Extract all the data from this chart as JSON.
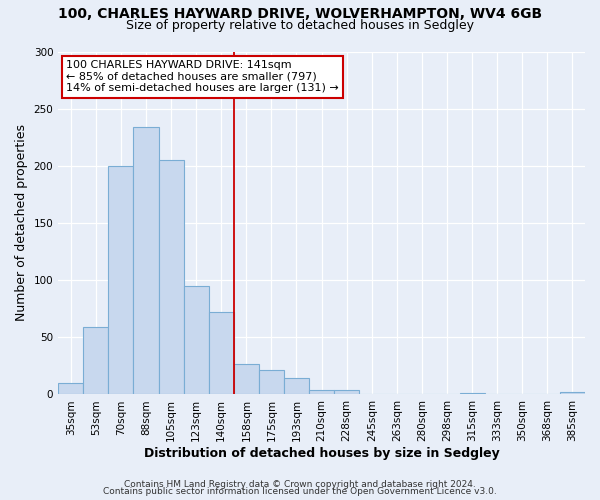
{
  "title": "100, CHARLES HAYWARD DRIVE, WOLVERHAMPTON, WV4 6GB",
  "subtitle": "Size of property relative to detached houses in Sedgley",
  "xlabel": "Distribution of detached houses by size in Sedgley",
  "ylabel": "Number of detached properties",
  "bar_labels": [
    "35sqm",
    "53sqm",
    "70sqm",
    "88sqm",
    "105sqm",
    "123sqm",
    "140sqm",
    "158sqm",
    "175sqm",
    "193sqm",
    "210sqm",
    "228sqm",
    "245sqm",
    "263sqm",
    "280sqm",
    "298sqm",
    "315sqm",
    "333sqm",
    "350sqm",
    "368sqm",
    "385sqm"
  ],
  "bar_values": [
    10,
    59,
    200,
    234,
    205,
    95,
    72,
    27,
    21,
    14,
    4,
    4,
    0,
    0,
    0,
    0,
    1,
    0,
    0,
    0,
    2
  ],
  "bar_color": "#c8d8ee",
  "bar_edge_color": "#7aadd4",
  "vline_color": "#cc0000",
  "annotation_line1": "100 CHARLES HAYWARD DRIVE: 141sqm",
  "annotation_line2": "← 85% of detached houses are smaller (797)",
  "annotation_line3": "14% of semi-detached houses are larger (131) →",
  "annotation_box_color": "white",
  "annotation_box_edge_color": "#cc0000",
  "ylim": [
    0,
    300
  ],
  "yticks": [
    0,
    50,
    100,
    150,
    200,
    250,
    300
  ],
  "footer1": "Contains HM Land Registry data © Crown copyright and database right 2024.",
  "footer2": "Contains public sector information licensed under the Open Government Licence v3.0.",
  "bg_color": "#e8eef8",
  "plot_bg_color": "#e8eef8",
  "title_fontsize": 10,
  "subtitle_fontsize": 9,
  "axis_label_fontsize": 9,
  "tick_fontsize": 7.5,
  "annotation_fontsize": 8,
  "footer_fontsize": 6.5,
  "vline_bar_index": 6
}
